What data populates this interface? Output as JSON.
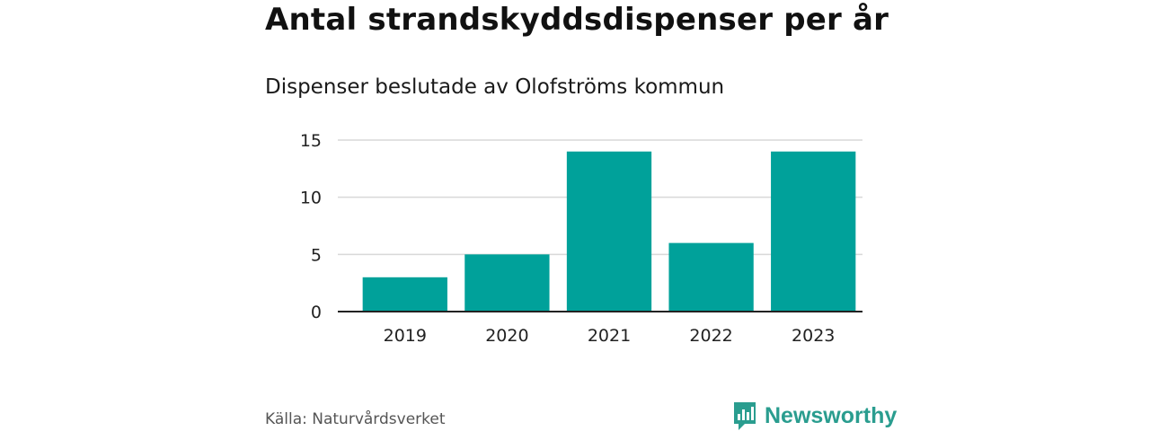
{
  "header": {
    "title": "Antal strandskyddsdispenser per år",
    "subtitle": "Dispenser beslutade av Olofströms kommun"
  },
  "footer": {
    "source": "Källa: Naturvårdsverket",
    "brand": "Newsworthy",
    "brand_icon": "bar-chart-speech-bubble-icon"
  },
  "colors": {
    "bar": "#00a19a",
    "grid": "#d9d9d9",
    "axis": "#222222",
    "brand": "#2a9d8f"
  },
  "chart_data": {
    "type": "bar",
    "title": "Antal strandskyddsdispenser per år",
    "subtitle": "Dispenser beslutade av Olofströms kommun",
    "categories": [
      "2019",
      "2020",
      "2021",
      "2022",
      "2023"
    ],
    "values": [
      3,
      5,
      14,
      6,
      14
    ],
    "xlabel": "",
    "ylabel": "",
    "ylim": [
      0,
      15
    ],
    "yticks": [
      0,
      5,
      10,
      15
    ],
    "grid": true,
    "legend": "none"
  }
}
